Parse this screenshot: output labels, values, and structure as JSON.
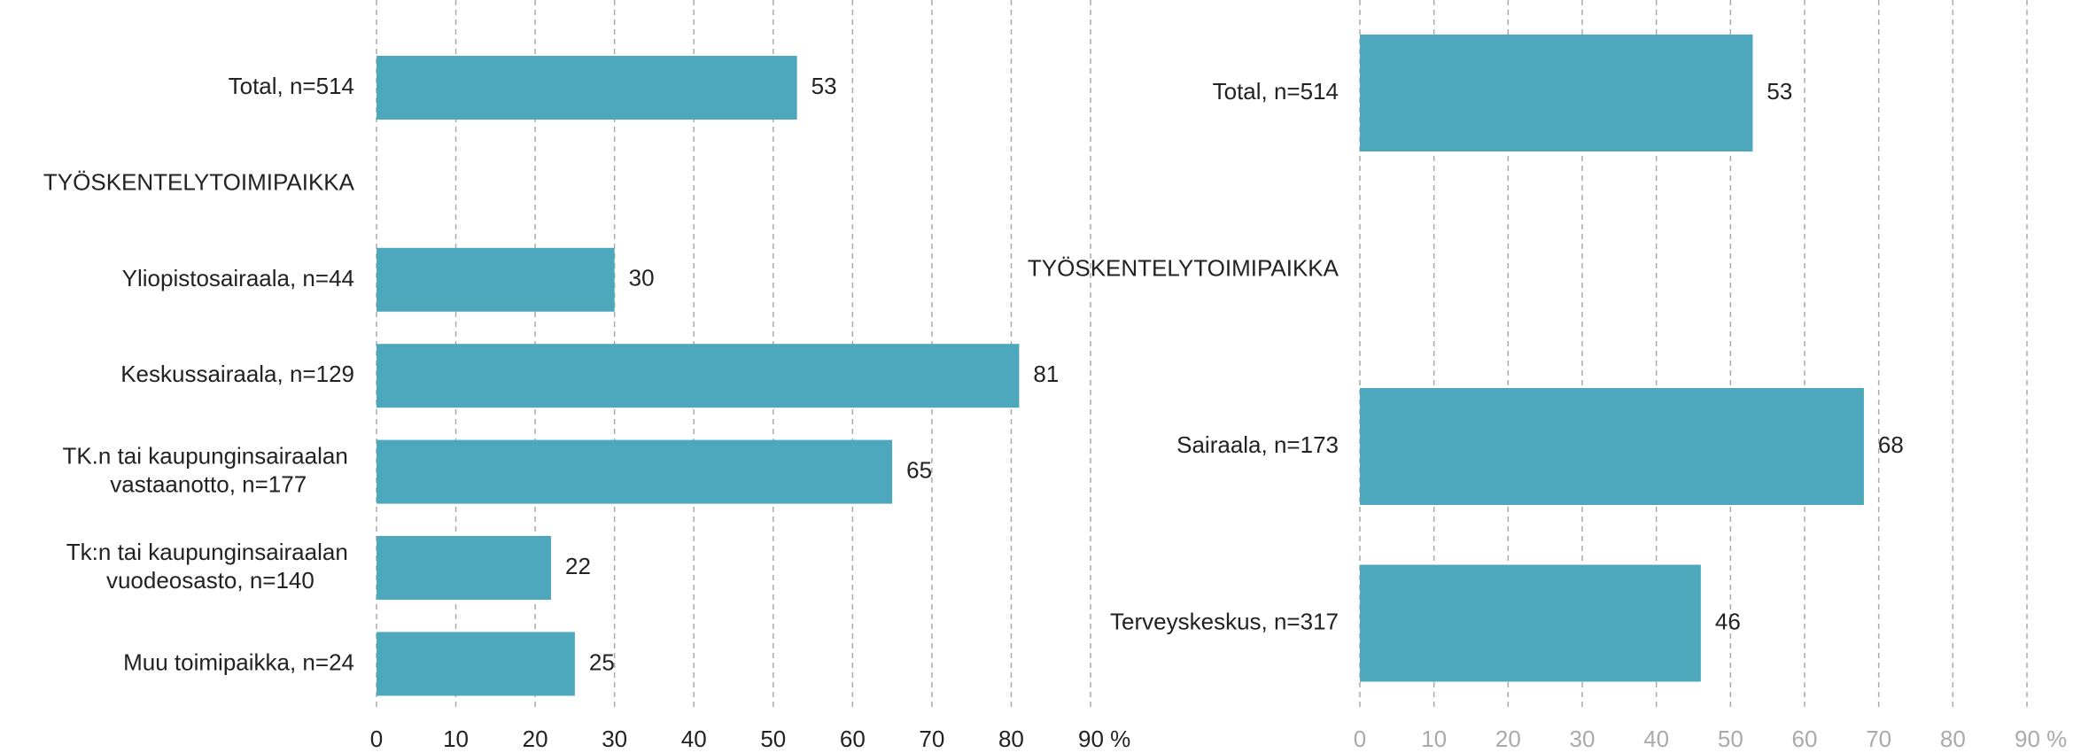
{
  "chart_data": [
    {
      "type": "bar",
      "orientation": "horizontal",
      "categories": [
        "Total, n=514",
        "TYÖSKENTELYTOIMIPAIKKA",
        "Yliopistosairaala, n=44",
        "Keskussairaala, n=129",
        "TK.n tai kaupunginsairaalan vastaanotto, n=177",
        "Tk:n tai kaupunginsairaalan vuodeosasto, n=140",
        "Muu toimipaikka, n=24"
      ],
      "values": [
        53,
        null,
        30,
        81,
        65,
        22,
        25
      ],
      "color": "#4ea8bd",
      "tick_label_color": "#222222",
      "xlim": [
        0,
        90
      ],
      "xticks": [
        0,
        10,
        20,
        30,
        40,
        50,
        60,
        70,
        80,
        {
          "value": 90,
          "label": "90 %"
        }
      ],
      "grid": true
    },
    {
      "type": "bar",
      "orientation": "horizontal",
      "categories": [
        "Total, n=514",
        "TYÖSKENTELYTOIMIPAIKKA",
        "Sairaala, n=173",
        "Terveyskeskus, n=317"
      ],
      "values": [
        53,
        null,
        68,
        46
      ],
      "color": "#4ea8bd",
      "tick_label_color": "#aaaaaa",
      "xlim": [
        0,
        90
      ],
      "xticks": [
        0,
        10,
        20,
        30,
        40,
        50,
        60,
        70,
        80,
        {
          "value": 90,
          "label": "90 %"
        }
      ],
      "grid": true
    }
  ]
}
